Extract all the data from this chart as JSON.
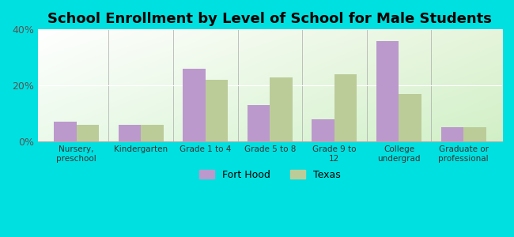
{
  "title": "School Enrollment by Level of School for Male Students",
  "categories": [
    "Nursery,\npreschool",
    "Kindergarten",
    "Grade 1 to 4",
    "Grade 5 to 8",
    "Grade 9 to\n12",
    "College\nundergrad",
    "Graduate or\nprofessional"
  ],
  "fort_hood": [
    7,
    6,
    26,
    13,
    8,
    36,
    5
  ],
  "texas": [
    6,
    6,
    22,
    23,
    24,
    17,
    5
  ],
  "ylim": [
    0,
    40
  ],
  "yticks": [
    0,
    20,
    40
  ],
  "ytick_labels": [
    "0%",
    "20%",
    "40%"
  ],
  "fort_hood_color": "#bb99cc",
  "texas_color": "#bbcc99",
  "background_outer": "#00e0e0",
  "legend_labels": [
    "Fort Hood",
    "Texas"
  ],
  "title_fontsize": 13,
  "bar_width": 0.35,
  "n_categories": 7
}
